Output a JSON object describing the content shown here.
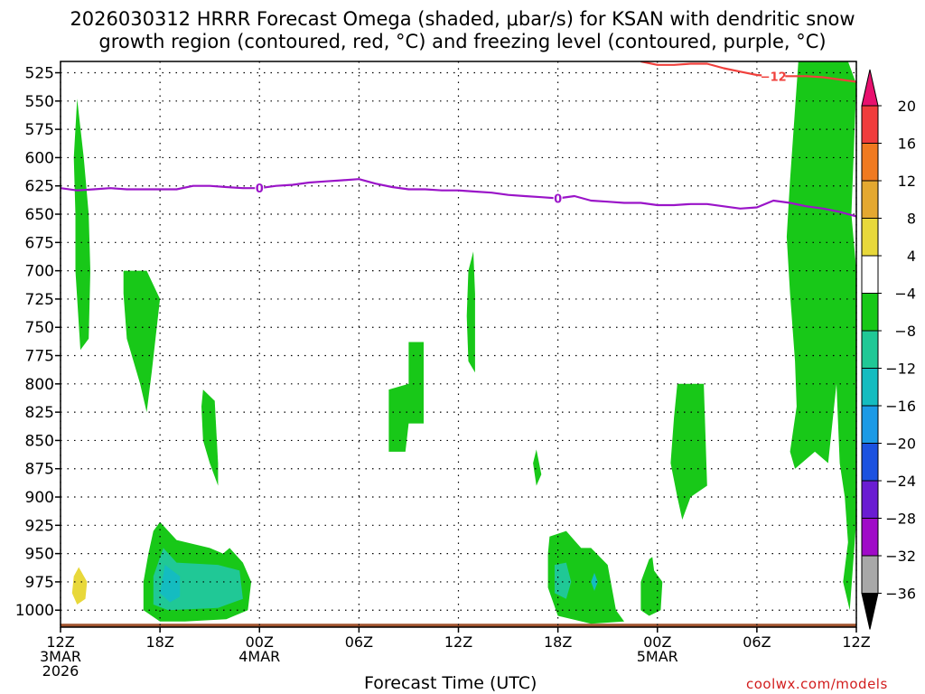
{
  "title": {
    "line1": "2026030312 HRRR Forecast Omega (shaded, μbar/s) for KSAN with dendritic snow",
    "line2": "growth region (contoured, red, °C) and freezing level (contoured, purple, °C)"
  },
  "xlabel": "Forecast Time (UTC)",
  "credit": "coolwx.com/models",
  "chart_data": {
    "type": "heatmap",
    "title": "2026030312 HRRR Forecast Omega (shaded, μbar/s) for KSAN with dendritic snow growth region (contoured, red, °C) and freezing level (contoured, purple, °C)",
    "xlabel": "Forecast Time (UTC)",
    "ylabel": "",
    "y_axis": {
      "units": "hPa",
      "range": [
        1015,
        515
      ],
      "ticks": [
        525,
        550,
        575,
        600,
        625,
        650,
        675,
        700,
        725,
        750,
        775,
        800,
        825,
        850,
        875,
        900,
        925,
        950,
        975,
        1000
      ],
      "grid": true
    },
    "x_axis": {
      "units": "forecast hour",
      "range": [
        0,
        48
      ],
      "ticks": [
        {
          "h": 0,
          "label": [
            "12Z",
            "3MAR",
            "2026"
          ]
        },
        {
          "h": 6,
          "label": [
            "18Z"
          ]
        },
        {
          "h": 12,
          "label": [
            "00Z",
            "4MAR"
          ]
        },
        {
          "h": 18,
          "label": [
            "06Z"
          ]
        },
        {
          "h": 24,
          "label": [
            "12Z"
          ]
        },
        {
          "h": 30,
          "label": [
            "18Z"
          ]
        },
        {
          "h": 36,
          "label": [
            "00Z",
            "5MAR"
          ]
        },
        {
          "h": 42,
          "label": [
            "06Z"
          ]
        },
        {
          "h": 48,
          "label": [
            "12Z"
          ]
        }
      ],
      "grid": true
    },
    "colorbar": {
      "labels": [
        "20",
        "16",
        "12",
        "8",
        "4",
        "−4",
        "−8",
        "−12",
        "−16",
        "−20",
        "−24",
        "−28",
        "−32",
        "−36"
      ],
      "colors": [
        "#e8106e",
        "#f03c3c",
        "#f07a20",
        "#e4a830",
        "#e8d83a",
        "#ffffff",
        "#18c818",
        "#20c896",
        "#14bcc0",
        "#1c9ae6",
        "#1c52e0",
        "#6a1cd2",
        "#a00ac8",
        "#a8a8a8",
        "#000000"
      ]
    },
    "freezing_level": {
      "name": "freezing level",
      "color": "#9a14c8",
      "contour_label": "0",
      "x": [
        0,
        1,
        2,
        3,
        4,
        5,
        6,
        7,
        8,
        9,
        10,
        11,
        12,
        13,
        14,
        15,
        16,
        17,
        18,
        19,
        20,
        21,
        22,
        23,
        24,
        25,
        26,
        27,
        28,
        29,
        30,
        31,
        32,
        33,
        34,
        35,
        36,
        37,
        38,
        39,
        40,
        41,
        42,
        43,
        44,
        45,
        46,
        47,
        48
      ],
      "y": [
        627,
        629,
        628,
        627,
        628,
        628,
        628,
        628,
        625,
        625,
        626,
        627,
        627,
        625,
        624,
        622,
        621,
        620,
        619,
        623,
        626,
        628,
        628,
        629,
        629,
        630,
        631,
        633,
        634,
        635,
        636,
        634,
        638,
        639,
        640,
        640,
        642,
        642,
        641,
        641,
        643,
        645,
        644,
        638,
        640,
        643,
        645,
        648,
        652
      ]
    },
    "dgz_contour": {
      "name": "-12",
      "color": "#f0403c",
      "contour_label": "−12",
      "x": [
        35,
        36,
        37,
        38,
        39,
        40,
        41,
        42,
        43,
        44,
        45,
        46,
        47,
        48
      ],
      "y": [
        515,
        518,
        518,
        517,
        517,
        521,
        524,
        527,
        528,
        528,
        528,
        529,
        531,
        533
      ]
    },
    "omega_regions": [
      {
        "category": "<-4",
        "points": [
          [
            1.0,
            548
          ],
          [
            1.4,
            600
          ],
          [
            1.7,
            650
          ],
          [
            1.8,
            700
          ],
          [
            1.7,
            760
          ],
          [
            1.2,
            770
          ],
          [
            0.9,
            700
          ],
          [
            0.9,
            650
          ],
          [
            0.8,
            600
          ],
          [
            1.0,
            548
          ]
        ]
      },
      {
        "category": "<-4",
        "points": [
          [
            3.8,
            700
          ],
          [
            5.2,
            700
          ],
          [
            6.0,
            725
          ],
          [
            5.5,
            790
          ],
          [
            5.2,
            825
          ],
          [
            4.8,
            800
          ],
          [
            4.0,
            760
          ],
          [
            3.8,
            720
          ]
        ]
      },
      {
        "category": "<-4",
        "points": [
          [
            8.6,
            805
          ],
          [
            9.3,
            815
          ],
          [
            9.5,
            870
          ],
          [
            9.5,
            890
          ],
          [
            9.0,
            870
          ],
          [
            8.6,
            850
          ],
          [
            8.5,
            820
          ]
        ]
      },
      {
        "category": "<-4",
        "points": [
          [
            19.8,
            805
          ],
          [
            21.0,
            800
          ],
          [
            21.0,
            763
          ],
          [
            21.9,
            763
          ],
          [
            21.9,
            835
          ],
          [
            21.0,
            835
          ],
          [
            20.8,
            860
          ],
          [
            19.8,
            860
          ]
        ]
      },
      {
        "category": "<-4",
        "points": [
          [
            24.9,
            683
          ],
          [
            25.0,
            720
          ],
          [
            25.0,
            790
          ],
          [
            24.6,
            780
          ],
          [
            24.5,
            740
          ],
          [
            24.6,
            700
          ]
        ]
      },
      {
        "category": "<-4",
        "points": [
          [
            28.7,
            858
          ],
          [
            29.0,
            880
          ],
          [
            28.7,
            890
          ],
          [
            28.5,
            870
          ]
        ]
      },
      {
        "category": "<-4",
        "points": [
          [
            37.2,
            800
          ],
          [
            38.8,
            800
          ],
          [
            39.0,
            890
          ],
          [
            38.0,
            900
          ],
          [
            37.5,
            920
          ],
          [
            37.2,
            900
          ],
          [
            36.8,
            870
          ],
          [
            37.0,
            830
          ]
        ]
      },
      {
        "category": "<-4",
        "points": [
          [
            6.0,
            922
          ],
          [
            7.0,
            938
          ],
          [
            9.0,
            945
          ],
          [
            9.8,
            950
          ],
          [
            10.2,
            945
          ],
          [
            11.0,
            958
          ],
          [
            11.5,
            975
          ],
          [
            11.3,
            1000
          ],
          [
            10.0,
            1008
          ],
          [
            7.5,
            1010
          ],
          [
            6.0,
            1010
          ],
          [
            5.0,
            1000
          ],
          [
            5.0,
            975
          ],
          [
            5.3,
            950
          ],
          [
            5.6,
            930
          ]
        ]
      },
      {
        "category": "<-4",
        "points": [
          [
            29.5,
            935
          ],
          [
            30.5,
            930
          ],
          [
            31.4,
            945
          ],
          [
            32.0,
            945
          ],
          [
            33.0,
            960
          ],
          [
            33.5,
            1000
          ],
          [
            34.0,
            1010
          ],
          [
            32.0,
            1012
          ],
          [
            30.0,
            1005
          ],
          [
            29.4,
            980
          ],
          [
            29.4,
            950
          ]
        ]
      },
      {
        "category": "<-4",
        "points": [
          [
            35.7,
            953
          ],
          [
            35.8,
            965
          ],
          [
            36.3,
            975
          ],
          [
            36.2,
            1000
          ],
          [
            35.5,
            1005
          ],
          [
            35.0,
            1000
          ],
          [
            35.0,
            975
          ],
          [
            35.5,
            955
          ]
        ]
      },
      {
        "category": "<-4",
        "points": [
          [
            44.5,
            515
          ],
          [
            47.5,
            515
          ],
          [
            48.0,
            535
          ],
          [
            47.7,
            650
          ],
          [
            48.0,
            700
          ],
          [
            48.0,
            920
          ],
          [
            47.6,
            1000
          ],
          [
            47.2,
            975
          ],
          [
            47.5,
            940
          ],
          [
            47.3,
            900
          ],
          [
            47.0,
            870
          ],
          [
            46.8,
            800
          ],
          [
            46.3,
            870
          ],
          [
            45.5,
            860
          ],
          [
            44.3,
            875
          ],
          [
            44.0,
            860
          ],
          [
            44.4,
            820
          ],
          [
            44.3,
            780
          ],
          [
            44.0,
            720
          ],
          [
            43.8,
            670
          ],
          [
            44.0,
            620
          ]
        ]
      },
      {
        "category": "<-8",
        "points": [
          [
            6.2,
            945
          ],
          [
            7.0,
            958
          ],
          [
            9.5,
            960
          ],
          [
            10.8,
            965
          ],
          [
            11.0,
            990
          ],
          [
            9.5,
            998
          ],
          [
            6.5,
            1000
          ],
          [
            5.6,
            995
          ],
          [
            5.6,
            970
          ]
        ]
      },
      {
        "category": "<-8",
        "points": [
          [
            29.8,
            960
          ],
          [
            30.5,
            958
          ],
          [
            30.8,
            975
          ],
          [
            30.5,
            990
          ],
          [
            29.8,
            985
          ]
        ]
      },
      {
        "category": "<-12",
        "points": [
          [
            6.3,
            960
          ],
          [
            7.2,
            970
          ],
          [
            7.2,
            988
          ],
          [
            6.6,
            993
          ],
          [
            6.0,
            985
          ]
        ]
      },
      {
        "category": "<-12",
        "points": [
          [
            32.2,
            967
          ],
          [
            32.4,
            975
          ],
          [
            32.2,
            983
          ],
          [
            32.0,
            975
          ]
        ]
      },
      {
        "category": ">4",
        "points": [
          [
            1.1,
            962
          ],
          [
            1.6,
            975
          ],
          [
            1.5,
            990
          ],
          [
            1.0,
            995
          ],
          [
            0.7,
            985
          ],
          [
            0.8,
            970
          ]
        ]
      }
    ],
    "terrain": {
      "color": "#a0522d",
      "pressure_hPa": 1012
    }
  }
}
